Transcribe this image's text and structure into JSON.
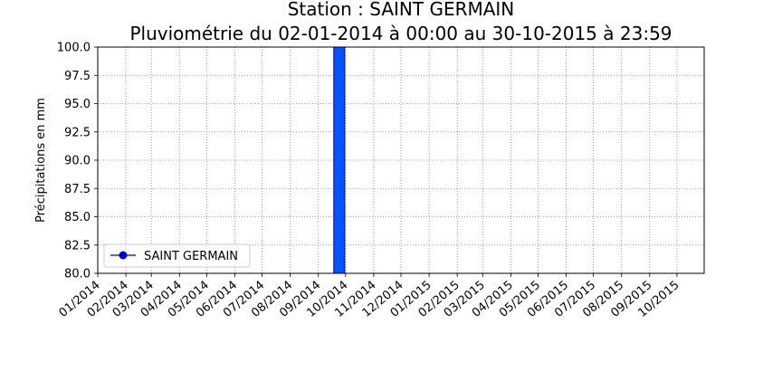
{
  "chart_data": {
    "type": "bar",
    "title_lines": [
      "Station : SAINT GERMAIN",
      "Pluviométrie du 02-01-2014 à 00:00 au 30-10-2015 à 23:59"
    ],
    "xlabel": "",
    "ylabel": "Précipitations en mm",
    "ylim": [
      80.0,
      100.0
    ],
    "yticks": [
      "80.0",
      "82.5",
      "85.0",
      "87.5",
      "90.0",
      "92.5",
      "95.0",
      "97.5",
      "100.0"
    ],
    "xlim": [
      "2014-01-01",
      "2015-10-31"
    ],
    "xtick_dates": [
      "2014-01-01",
      "2014-02-01",
      "2014-03-01",
      "2014-04-01",
      "2014-05-01",
      "2014-06-01",
      "2014-07-01",
      "2014-08-01",
      "2014-09-01",
      "2014-10-01",
      "2014-11-01",
      "2014-12-01",
      "2015-01-01",
      "2015-02-01",
      "2015-03-01",
      "2015-04-01",
      "2015-05-01",
      "2015-06-01",
      "2015-07-01",
      "2015-08-01",
      "2015-09-01",
      "2015-10-01"
    ],
    "xtick_labels": [
      "01/2014",
      "02/2014",
      "03/2014",
      "04/2014",
      "05/2014",
      "06/2014",
      "07/2014",
      "08/2014",
      "09/2014",
      "10/2014",
      "11/2014",
      "12/2014",
      "01/2015",
      "02/2015",
      "03/2015",
      "04/2015",
      "05/2015",
      "06/2015",
      "07/2015",
      "08/2015",
      "09/2015",
      "10/2015"
    ],
    "grid": true,
    "legend_position": "lower-left",
    "series": [
      {
        "name": "SAINT GERMAIN",
        "color": "#0055ff",
        "edge_color": "#0000cc",
        "bars": [
          {
            "start": "2014-09-18",
            "end": "2014-09-30",
            "value": 100.0
          }
        ]
      }
    ]
  }
}
